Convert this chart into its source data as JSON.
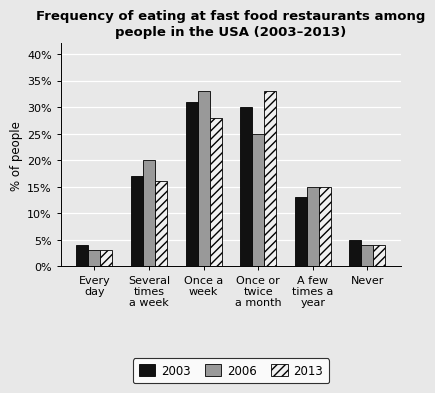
{
  "title": "Frequency of eating at fast food restaurants among\npeople in the USA (2003–2013)",
  "ylabel": "% of people",
  "categories": [
    "Every\nday",
    "Several\ntimes\na week",
    "Once a\nweek",
    "Once or\ntwice\na month",
    "A few\ntimes a\nyear",
    "Never"
  ],
  "series": {
    "2003": [
      4,
      17,
      31,
      30,
      13,
      5
    ],
    "2006": [
      3,
      20,
      33,
      25,
      15,
      4
    ],
    "2013": [
      3,
      16,
      28,
      33,
      15,
      4
    ]
  },
  "colors": {
    "2003": "#111111",
    "2006": "#999999",
    "2013": "#f0f0f0"
  },
  "hatch": {
    "2003": "",
    "2006": "",
    "2013": "////"
  },
  "bar_edge_color": "black",
  "ylim": [
    0,
    42
  ],
  "yticks": [
    0,
    5,
    10,
    15,
    20,
    25,
    30,
    35,
    40
  ],
  "ytick_labels": [
    "0%",
    "5%",
    "10%",
    "15%",
    "20%",
    "25%",
    "30%",
    "35%",
    "40%"
  ],
  "background_color": "#e8e8e8",
  "plot_bg_color": "#e8e8e8",
  "grid_color": "#ffffff",
  "legend_labels": [
    "2003",
    "2006",
    "2013"
  ],
  "bar_width": 0.22,
  "title_fontsize": 9.5,
  "axis_label_fontsize": 8.5,
  "tick_fontsize": 8,
  "legend_fontsize": 8.5
}
